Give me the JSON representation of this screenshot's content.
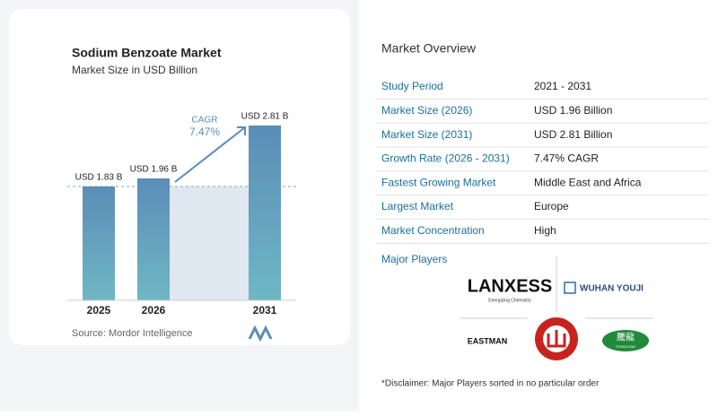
{
  "chart_data": {
    "type": "bar",
    "title": "Sodium Benzoate Market",
    "subtitle": "Market Size in USD Billion",
    "categories": [
      "2025",
      "2026",
      "2031"
    ],
    "values": [
      1.83,
      1.96,
      2.81
    ],
    "value_labels": [
      "USD 1.83 B",
      "USD 1.96 B",
      "USD 2.81 B"
    ],
    "cagr_label": "CAGR",
    "cagr": "7.47%",
    "color": "#5b8db8",
    "source": "Source: Mordor Intelligence"
  },
  "market_overview": {
    "title": "Market Overview",
    "rows": [
      [
        "Study Period",
        "2021 - 2031"
      ],
      [
        "Market Size (2026)",
        "USD 1.96 Billion"
      ],
      [
        "Market Size (2031)",
        "USD 2.81 Billion"
      ],
      [
        "Growth Rate (2026 - 2031)",
        "7.47% CAGR"
      ],
      [
        "Fastest Growing Market",
        "Middle East and Africa"
      ],
      [
        "Largest Market",
        "Europe"
      ],
      [
        "Market Concentration",
        "High"
      ]
    ]
  },
  "major_players": {
    "title": "Major Players",
    "logos": [
      "LANXESS",
      "Energizing Chemistry",
      "WUHAN YOUJI",
      "EASTMAN",
      "騰龍",
      "TENGLONG"
    ]
  },
  "disclaimer": "*Disclaimer: Major Players sorted in no particular order"
}
